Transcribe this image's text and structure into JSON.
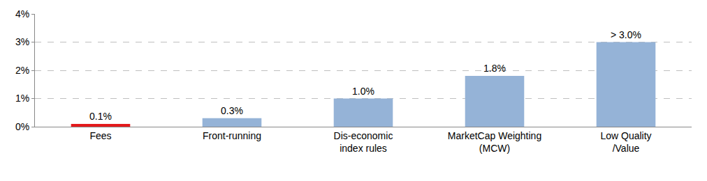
{
  "chart_data": {
    "type": "bar",
    "categories": [
      "Fees",
      "Front-running",
      "Dis-economic\nindex rules",
      "MarketCap Weighting\n(MCW)",
      "Low Quality\n/Value"
    ],
    "values": [
      0.1,
      0.3,
      1.0,
      1.8,
      3.0
    ],
    "value_labels": [
      "0.1%",
      "0.3%",
      "1.0%",
      "1.8%",
      "> 3.0%"
    ],
    "colors": [
      "#e31a1c",
      "#95b3d7",
      "#95b3d7",
      "#95b3d7",
      "#95b3d7"
    ],
    "ylim": [
      0,
      4
    ],
    "yticks": [
      {
        "value": 0,
        "label": "0%"
      },
      {
        "value": 1,
        "label": "1%"
      },
      {
        "value": 2,
        "label": "2%"
      },
      {
        "value": 3,
        "label": "3%"
      },
      {
        "value": 4,
        "label": "4%"
      }
    ],
    "grid": true,
    "data_labels": true
  }
}
